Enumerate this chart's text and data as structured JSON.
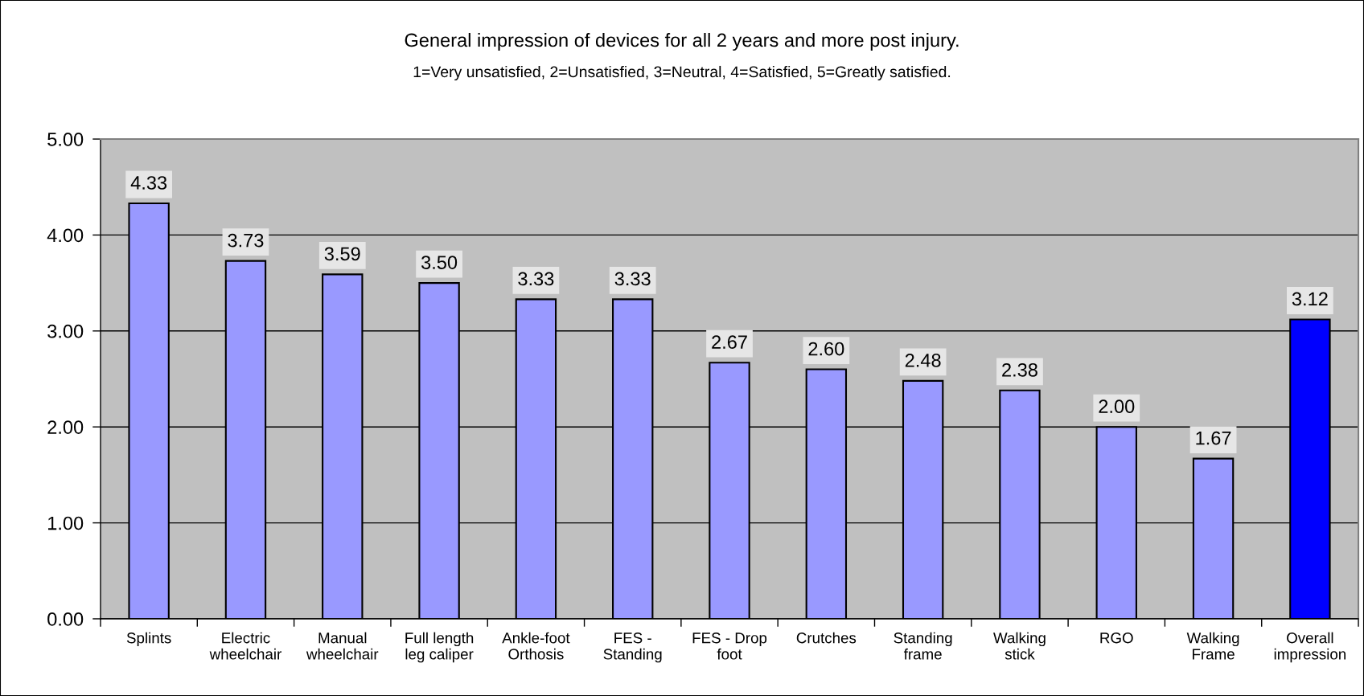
{
  "chart_data": {
    "type": "bar",
    "title": "General impression of devices for all 2 years and more post injury.",
    "subtitle": "1=Very unsatisfied, 2=Unsatisfied, 3=Neutral, 4=Satisfied, 5=Greatly satisfied.",
    "categories": [
      "Splints",
      "Electric\nwheelchair",
      "Manual\nwheelchair",
      "Full length\nleg caliper",
      "Ankle-foot\nOrthosis",
      "FES -\nStanding",
      "FES - Drop\nfoot",
      "Crutches",
      "Standing\nframe",
      "Walking\nstick",
      "RGO",
      "Walking\nFrame",
      "Overall\nimpression"
    ],
    "values": [
      4.33,
      3.73,
      3.59,
      3.5,
      3.33,
      3.33,
      2.67,
      2.6,
      2.48,
      2.38,
      2.0,
      1.67,
      3.12
    ],
    "value_labels": [
      "4.33",
      "3.73",
      "3.59",
      "3.50",
      "3.33",
      "3.33",
      "2.67",
      "2.60",
      "2.48",
      "2.38",
      "2.00",
      "1.67",
      "3.12"
    ],
    "colors": [
      "#9999ff",
      "#9999ff",
      "#9999ff",
      "#9999ff",
      "#9999ff",
      "#9999ff",
      "#9999ff",
      "#9999ff",
      "#9999ff",
      "#9999ff",
      "#9999ff",
      "#9999ff",
      "#0000ff"
    ],
    "ylim": [
      0,
      5
    ],
    "yticks": [
      {
        "value": 0,
        "label": "0.00"
      },
      {
        "value": 1,
        "label": "1.00"
      },
      {
        "value": 2,
        "label": "2.00"
      },
      {
        "value": 3,
        "label": "3.00"
      },
      {
        "value": 4,
        "label": "4.00"
      },
      {
        "value": 5,
        "label": "5.00"
      }
    ],
    "grid": "y"
  }
}
